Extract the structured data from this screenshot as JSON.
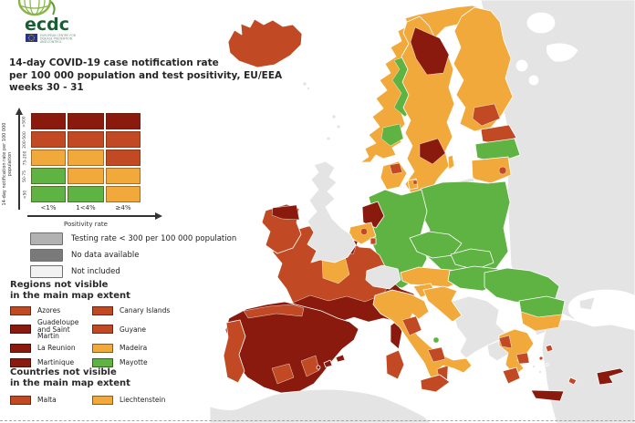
{
  "header": {
    "logo_text": "ecdc",
    "logo_sub_lines": [
      "EUROPEAN CENTRE FOR",
      "DISEASE PREVENTION",
      "AND CONTROL"
    ],
    "title_lines": [
      "14-day COVID-19 case notification rate",
      "per 100 000 population and test positivity, EU/EEA",
      "weeks 30 - 31"
    ]
  },
  "matrix_legend": {
    "y_axis_label": "14-day notification rate per 100 000 population",
    "x_axis_label": "Positivity rate",
    "row_labels": [
      ">500",
      "200-500",
      "75-200",
      "50-75",
      "<50"
    ],
    "col_labels": [
      "<1%",
      "1<4%",
      "≥4%"
    ],
    "cells": [
      [
        "dark_red",
        "dark_red",
        "dark_red"
      ],
      [
        "red",
        "red",
        "red"
      ],
      [
        "orange",
        "orange",
        "red"
      ],
      [
        "green",
        "orange",
        "orange"
      ],
      [
        "green",
        "green",
        "orange"
      ]
    ]
  },
  "legend_items": [
    {
      "label": "Testing rate < 300 per 100 000 population",
      "color_key": "gray_testing"
    },
    {
      "label": "No data available",
      "color_key": "gray_no_data"
    },
    {
      "label": "Not included",
      "color_key": "gray_not_included"
    }
  ],
  "regions_legend": {
    "title_lines": [
      "Regions not visible",
      "in the main map extent"
    ],
    "items": [
      {
        "label": "Azores",
        "color_key": "red"
      },
      {
        "label": "Canary Islands",
        "color_key": "red"
      },
      {
        "label": "Guadeloupe and Saint Martin",
        "color_key": "dark_red"
      },
      {
        "label": "Guyane",
        "color_key": "red"
      },
      {
        "label": "La Reunion",
        "color_key": "dark_red"
      },
      {
        "label": "Madeira",
        "color_key": "orange"
      },
      {
        "label": "Martinique",
        "color_key": "dark_red"
      },
      {
        "label": "Mayotte",
        "color_key": "green"
      }
    ]
  },
  "countries_legend": {
    "title_lines": [
      "Countries not visible",
      "in the main map extent"
    ],
    "items": [
      {
        "label": "Malta",
        "color_key": "red"
      },
      {
        "label": "Liechtenstein",
        "color_key": "orange"
      }
    ]
  },
  "palette": {
    "dark_red": "#8a1a0d",
    "red": "#c14a24",
    "orange": "#f2a93c",
    "green": "#5eb343",
    "gray_testing": "#b2b2b2",
    "gray_no_data": "#7a7a7a",
    "gray_not_included": "#f2f2f2",
    "land_gray": "#e4e4e4",
    "sea": "#ffffff",
    "logo_green": "#1a5c33",
    "globe_green": "#86b446",
    "eu_blue": "#27348b",
    "eu_star": "#ffd617"
  },
  "map_regions": {
    "russia-east-block": "land_gray",
    "black-sea": "sea",
    "crimea": "land_gray",
    "turkey": "land_gray",
    "turkey-west": "land_gray",
    "africa": "land_gray",
    "lake-1": "sea",
    "lake-2": "sea",
    "lake-3": "sea",
    "lake-4": "sea",
    "iceland": "red",
    "norway": "orange",
    "norway-inland-1": "green",
    "norway-inland-2": "green",
    "sweden": "orange",
    "sweden-north": "dark_red",
    "sweden-south-patch": "dark_red",
    "gotland": "orange",
    "finland": "orange",
    "finland-south-patch": "red",
    "estonia": "red",
    "latvia": "green",
    "lithuania": "orange",
    "lithuania-capital-patch": "red",
    "kaliningrad": "land_gray",
    "poland": "green",
    "germany": "green",
    "denmark": "orange",
    "denmark-patch": "red",
    "denmark-island": "orange",
    "denmark-island-patch": "red",
    "netherlands": "dark_red",
    "belgium": "orange",
    "belgium-patch": "red",
    "luxembourg": "red",
    "france": "red",
    "france-north-patch": "dark_red",
    "france-centre-patch": "orange",
    "france-south": "dark_red",
    "corsica": "dark_red",
    "sardinia": "red",
    "spain": "dark_red",
    "spain-north-coast": "red",
    "spain-west-patch": "red",
    "spain-southeast-patch": "red",
    "balearic-1": "dark_red",
    "balearic-2": "dark_red",
    "balearic-3": "dark_red",
    "portugal": "red",
    "ireland": "red",
    "ireland-north-patch": "dark_red",
    "united-kingdom": "land_gray",
    "faroe-1": "land_gray",
    "faroe-2": "land_gray",
    "shetland-1": "land_gray",
    "shetland-2": "land_gray",
    "hebrides-1": "land_gray",
    "switzerland": "land_gray",
    "austria": "orange",
    "czechia": "green",
    "slovakia": "green",
    "hungary": "green",
    "slovenia": "orange",
    "croatia": "orange",
    "italy": "orange",
    "italy-tuscany-patch": "red",
    "italy-molise-patch": "green",
    "italy-campania-patch": "red",
    "italy-calabria-patch": "red",
    "sicily": "red",
    "romania": "green",
    "bulgaria-north": "green",
    "bulgaria-south": "orange",
    "western-balkans": "land_gray",
    "albania-north-macedonia": "land_gray",
    "greece": "orange",
    "greece-west-patch": "red",
    "greece-attica-patch": "red",
    "peloponnese": "red",
    "crete": "dark_red",
    "lesbos": "red",
    "chios": "red",
    "rhodes": "red",
    "cyclades-1": "land_gray",
    "cyclades-2": "land_gray",
    "cyclades-3": "land_gray",
    "cyprus": "dark_red"
  }
}
